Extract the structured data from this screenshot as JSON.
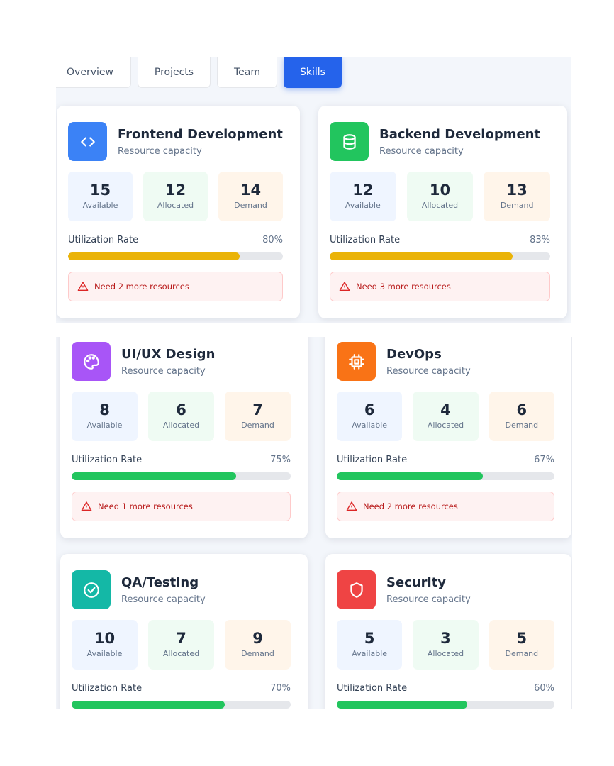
{
  "tabs": [
    "Overview",
    "Projects",
    "Team",
    "Skills"
  ],
  "cards": [
    {
      "title": "Frontend Development",
      "subtitle": "Resource capacity",
      "icon_color": "#3b82f6",
      "bar_color": "#eab308",
      "stats": [
        {
          "value": 15,
          "label": "Available"
        },
        {
          "value": 12,
          "label": "Allocated"
        },
        {
          "value": 14,
          "label": "Demand"
        }
      ],
      "utilization_label": "Utilization Rate",
      "utilization": {
        "value": 80,
        "label": "80%"
      },
      "alert": "Need 2 more resources"
    },
    {
      "title": "Backend Development",
      "subtitle": "Resource capacity",
      "icon_color": "#22c55e",
      "bar_color": "#eab308",
      "stats": [
        {
          "value": 12,
          "label": "Available"
        },
        {
          "value": 10,
          "label": "Allocated"
        },
        {
          "value": 13,
          "label": "Demand"
        }
      ],
      "utilization_label": "Utilization Rate",
      "utilization": {
        "value": 83,
        "label": "83%"
      },
      "alert": "Need 3 more resources"
    },
    {
      "title": "UI/UX Design",
      "subtitle": "Resource capacity",
      "icon_color": "#a855f7",
      "bar_color": "#22c55e",
      "stats": [
        {
          "value": 8,
          "label": "Available"
        },
        {
          "value": 6,
          "label": "Allocated"
        },
        {
          "value": 7,
          "label": "Demand"
        }
      ],
      "utilization_label": "Utilization Rate",
      "utilization": {
        "value": 75,
        "label": "75%"
      },
      "alert": "Need 1 more resources"
    },
    {
      "title": "DevOps",
      "subtitle": "Resource capacity",
      "icon_color": "#f97316",
      "bar_color": "#22c55e",
      "stats": [
        {
          "value": 6,
          "label": "Available"
        },
        {
          "value": 4,
          "label": "Allocated"
        },
        {
          "value": 6,
          "label": "Demand"
        }
      ],
      "utilization_label": "Utilization Rate",
      "utilization": {
        "value": 67,
        "label": "67%"
      },
      "alert": "Need 2 more resources"
    },
    {
      "title": "QA/Testing",
      "subtitle": "Resource capacity",
      "icon_color": "#14b8a6",
      "bar_color": "#22c55e",
      "stats": [
        {
          "value": 10,
          "label": "Available"
        },
        {
          "value": 7,
          "label": "Allocated"
        },
        {
          "value": 9,
          "label": "Demand"
        }
      ],
      "utilization_label": "Utilization Rate",
      "utilization": {
        "value": 70,
        "label": "70%"
      }
    },
    {
      "title": "Security",
      "subtitle": "Resource capacity",
      "icon_color": "#ef4444",
      "bar_color": "#22c55e",
      "stats": [
        {
          "value": 5,
          "label": "Available"
        },
        {
          "value": 3,
          "label": "Allocated"
        },
        {
          "value": 5,
          "label": "Demand"
        }
      ],
      "utilization_label": "Utilization Rate",
      "utilization": {
        "value": 60,
        "label": "60%"
      }
    }
  ]
}
